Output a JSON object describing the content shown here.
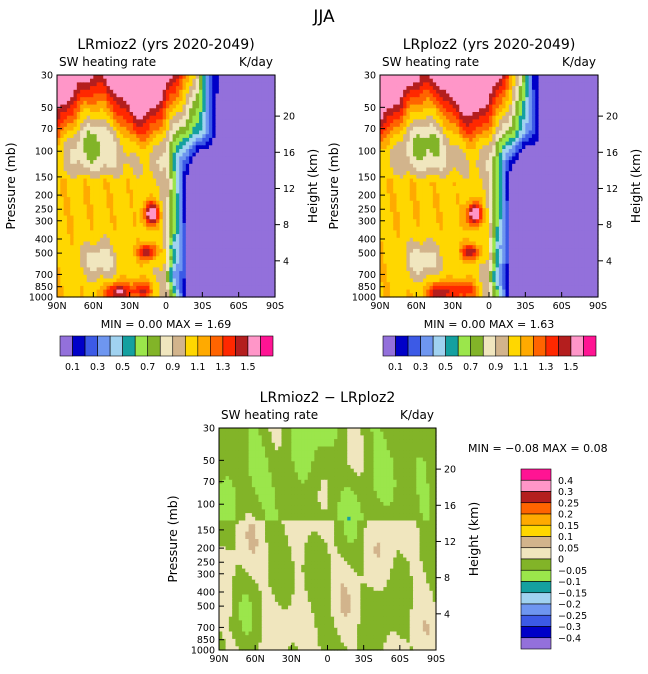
{
  "figure_title": "JJA",
  "palette_abs": [
    "#9370db",
    "#0000c8",
    "#3c5ae6",
    "#6e96f0",
    "#a0d2f0",
    "#14a0a0",
    "#9be64b",
    "#82b428",
    "#f0e6be",
    "#d2b48c",
    "#ffd700",
    "#ffaa00",
    "#ff6400",
    "#ff2800",
    "#b41e1e",
    "#ff96c8",
    "#ff1493"
  ],
  "palette_diff": [
    "#9370db",
    "#0000c8",
    "#3c5ae6",
    "#6e96f0",
    "#a0d2f0",
    "#14a0a0",
    "#9be64b",
    "#82b428",
    "#f0e6be",
    "#d2b48c",
    "#ffd700",
    "#ffaa00",
    "#ff6400",
    "#b41e1e",
    "#ff96c8",
    "#ff1493"
  ],
  "chart_data": [
    {
      "type": "heatmap",
      "title": "LRmioz2 (yrs 2020-2049)",
      "subtitle_left": "SW heating rate",
      "subtitle_right": "K/day",
      "ylabel": "Pressure (mb)",
      "ylabel_right": "Height (km)",
      "x_ticks": [
        "90N",
        "60N",
        "30N",
        "0",
        "30S",
        "60S",
        "90S"
      ],
      "y_ticks": [
        "1000",
        "850",
        "700",
        "500",
        "400",
        "300",
        "250",
        "200",
        "150",
        "100",
        "70",
        "50",
        "30"
      ],
      "y_ticks_right": [
        "4",
        "8",
        "12",
        "16",
        "20"
      ],
      "min_max_text": "MIN =    0.00   MAX =    1.69",
      "levels": [
        0.1,
        0.2,
        0.3,
        0.4,
        0.5,
        0.6,
        0.7,
        0.8,
        0.9,
        1.0,
        1.1,
        1.2,
        1.3,
        1.4,
        1.5
      ],
      "colorbar_labels": [
        "0.1",
        "0.3",
        "0.5",
        "0.7",
        "0.9",
        "1.1",
        "1.3",
        "1.5"
      ],
      "xlim": [
        "90N",
        "90S"
      ],
      "ylim": [
        1000,
        30
      ]
    },
    {
      "type": "heatmap",
      "title": "LRploz2 (yrs 2020-2049)",
      "subtitle_left": "SW heating rate",
      "subtitle_right": "K/day",
      "ylabel": "Pressure (mb)",
      "ylabel_right": "Height (km)",
      "x_ticks": [
        "90N",
        "60N",
        "30N",
        "0",
        "30S",
        "60S",
        "90S"
      ],
      "y_ticks": [
        "1000",
        "850",
        "700",
        "500",
        "400",
        "300",
        "250",
        "200",
        "150",
        "100",
        "70",
        "50",
        "30"
      ],
      "y_ticks_right": [
        "4",
        "8",
        "12",
        "16",
        "20"
      ],
      "min_max_text": "MIN =    0.00   MAX =    1.63",
      "levels": [
        0.1,
        0.2,
        0.3,
        0.4,
        0.5,
        0.6,
        0.7,
        0.8,
        0.9,
        1.0,
        1.1,
        1.2,
        1.3,
        1.4,
        1.5
      ],
      "colorbar_labels": [
        "0.1",
        "0.3",
        "0.5",
        "0.7",
        "0.9",
        "1.1",
        "1.3",
        "1.5"
      ],
      "xlim": [
        "90N",
        "90S"
      ],
      "ylim": [
        1000,
        30
      ]
    },
    {
      "type": "heatmap",
      "title": "LRmioz2 − LRploz2",
      "subtitle_left": "SW heating rate",
      "subtitle_right": "K/day",
      "ylabel": "Pressure (mb)",
      "ylabel_right": "Height (km)",
      "x_ticks": [
        "90N",
        "60N",
        "30N",
        "0",
        "30S",
        "60S",
        "90S"
      ],
      "y_ticks": [
        "1000",
        "850",
        "700",
        "500",
        "400",
        "300",
        "250",
        "200",
        "150",
        "100",
        "70",
        "50",
        "30"
      ],
      "y_ticks_right": [
        "4",
        "8",
        "12",
        "16",
        "20"
      ],
      "min_max_text": "MIN =   −0.08   MAX =    0.08",
      "levels": [
        -0.4,
        -0.3,
        -0.25,
        -0.2,
        -0.15,
        -0.1,
        -0.05,
        0,
        0.05,
        0.1,
        0.15,
        0.2,
        0.25,
        0.3,
        0.4
      ],
      "colorbar_labels": [
        "0.4",
        "0.3",
        "0.25",
        "0.2",
        "0.15",
        "0.1",
        "0.05",
        "0",
        "−0.05",
        "−0.1",
        "−0.15",
        "−0.2",
        "−0.25",
        "−0.3",
        "−0.4"
      ],
      "xlim": [
        "90N",
        "90S"
      ],
      "ylim": [
        1000,
        30
      ]
    }
  ]
}
